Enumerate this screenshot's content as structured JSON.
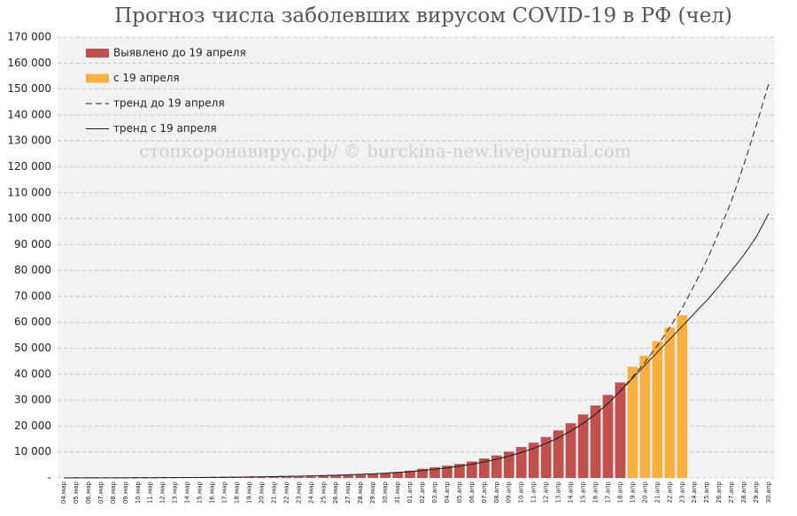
{
  "chart_data": {
    "type": "bar",
    "title": "Прогноз числа заболевших вирусом COVID-19 в РФ (чел)",
    "annotation": "стопкоронавирус.рф/ © burckina-new.livejournal.com",
    "categories": [
      "04.мар",
      "05.мар",
      "06.мар",
      "07.мар",
      "08.мар",
      "09.мар",
      "10.мар",
      "11.мар",
      "12.мар",
      "13.мар",
      "14.мар",
      "15.мар",
      "16.мар",
      "17.мар",
      "18.мар",
      "19.мар",
      "20.мар",
      "21.мар",
      "22.мар",
      "23.мар",
      "24.мар",
      "25.мар",
      "26.мар",
      "27.мар",
      "28.мар",
      "29.мар",
      "30.мар",
      "31.мар",
      "01.апр",
      "02.апр",
      "03.апр",
      "04.апр",
      "05.апр",
      "06.апр",
      "07.апр",
      "08.апр",
      "09.апр",
      "10.апр",
      "11.апр",
      "12.апр",
      "13.апр",
      "14.апр",
      "15.апр",
      "16.апр",
      "17.апр",
      "18.апр",
      "19.апр",
      "20.апр",
      "21.апр",
      "22.апр",
      "23.апр",
      "24.апр",
      "25.апр",
      "26.апр",
      "27.апр",
      "28.апр",
      "29.апр",
      "30.апр"
    ],
    "series": [
      {
        "name": "Выявлено до 19 апреля",
        "type": "bar",
        "color": "#c0504d",
        "values": [
          3,
          4,
          10,
          14,
          17,
          17,
          20,
          28,
          34,
          45,
          59,
          63,
          93,
          114,
          147,
          199,
          253,
          306,
          367,
          438,
          495,
          658,
          840,
          1036,
          1264,
          1534,
          1836,
          2337,
          2777,
          3548,
          4149,
          4731,
          5389,
          6343,
          7497,
          8672,
          10131,
          11917,
          13584,
          15770,
          18328,
          21102,
          24490,
          27938,
          32008,
          36793,
          null,
          null,
          null,
          null,
          null,
          null,
          null,
          null,
          null,
          null,
          null,
          null
        ]
      },
      {
        "name": "с 19 апреля",
        "type": "bar",
        "color": "#f9b040",
        "values": [
          null,
          null,
          null,
          null,
          null,
          null,
          null,
          null,
          null,
          null,
          null,
          null,
          null,
          null,
          null,
          null,
          null,
          null,
          null,
          null,
          null,
          null,
          null,
          null,
          null,
          null,
          null,
          null,
          null,
          null,
          null,
          null,
          null,
          null,
          null,
          null,
          null,
          null,
          null,
          null,
          null,
          null,
          null,
          null,
          null,
          null,
          42853,
          47121,
          52763,
          57999,
          62773,
          null,
          null,
          null,
          null,
          null,
          null,
          null
        ]
      },
      {
        "name": "тренд до 19 апреля",
        "type": "line",
        "dash": true,
        "color": "#222222",
        "values": [
          20,
          25,
          30,
          40,
          50,
          60,
          75,
          90,
          110,
          130,
          160,
          190,
          230,
          270,
          320,
          380,
          440,
          510,
          590,
          680,
          780,
          900,
          1040,
          1200,
          1380,
          1580,
          1820,
          2100,
          2450,
          2850,
          3350,
          3900,
          4550,
          5300,
          6200,
          7200,
          8400,
          9800,
          11400,
          13300,
          15500,
          18100,
          21100,
          24600,
          28700,
          33500,
          39000,
          44700,
          51000,
          58000,
          65500,
          74500,
          84000,
          95000,
          107000,
          121000,
          136000,
          152000
        ]
      },
      {
        "name": "тренд с 19 апреля",
        "type": "line",
        "dash": false,
        "color": "#222222",
        "values": [
          20,
          25,
          30,
          40,
          50,
          60,
          75,
          90,
          110,
          130,
          160,
          190,
          230,
          270,
          320,
          380,
          440,
          510,
          590,
          680,
          780,
          900,
          1040,
          1200,
          1380,
          1580,
          1820,
          2100,
          2450,
          2850,
          3350,
          3900,
          4550,
          5300,
          6200,
          7200,
          8400,
          9800,
          11400,
          13300,
          15500,
          18100,
          21100,
          24600,
          28700,
          33500,
          38500,
          43500,
          48500,
          53500,
          58500,
          63500,
          68500,
          74000,
          80000,
          86000,
          93000,
          102000
        ]
      }
    ],
    "ylim": [
      0,
      170000
    ],
    "yticks": [
      {
        "value": 0,
        "label": "-"
      },
      {
        "value": 10000,
        "label": "10 000"
      },
      {
        "value": 20000,
        "label": "20 000"
      },
      {
        "value": 30000,
        "label": "30 000"
      },
      {
        "value": 40000,
        "label": "40 000"
      },
      {
        "value": 50000,
        "label": "50 000"
      },
      {
        "value": 60000,
        "label": "60 000"
      },
      {
        "value": 70000,
        "label": "70 000"
      },
      {
        "value": 80000,
        "label": "80 000"
      },
      {
        "value": 90000,
        "label": "90 000"
      },
      {
        "value": 100000,
        "label": "100 000"
      },
      {
        "value": 110000,
        "label": "110 000"
      },
      {
        "value": 120000,
        "label": "120 000"
      },
      {
        "value": 130000,
        "label": "130 000"
      },
      {
        "value": 140000,
        "label": "140 000"
      },
      {
        "value": 150000,
        "label": "150 000"
      },
      {
        "value": 160000,
        "label": "160 000"
      },
      {
        "value": 170000,
        "label": "170 000"
      }
    ],
    "grid": true,
    "legend": "top-left"
  }
}
